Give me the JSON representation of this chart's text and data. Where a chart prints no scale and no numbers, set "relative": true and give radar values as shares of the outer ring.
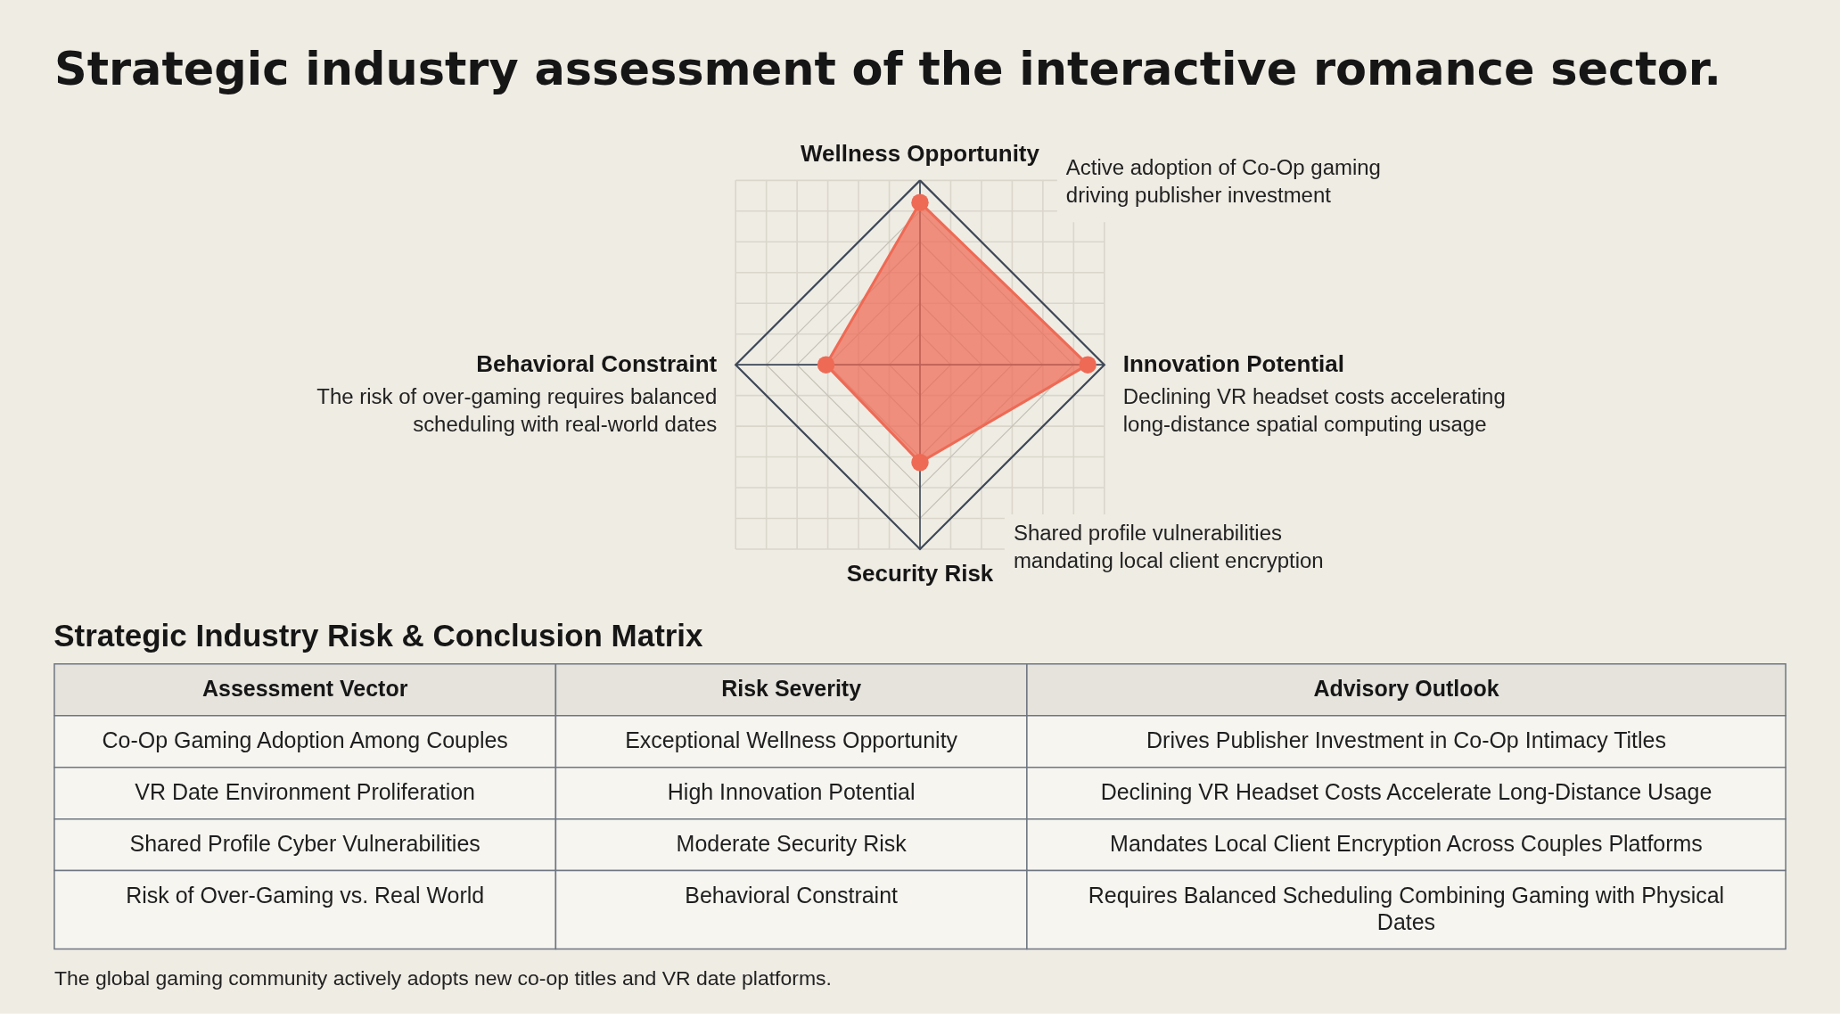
{
  "chart_data": [
    {
      "type": "radar",
      "title": "Strategic industry assessment of the interactive romance sector.",
      "categories": [
        "Wellness Opportunity",
        "Innovation Potential",
        "Security Risk",
        "Behavioral Constraint"
      ],
      "series": [
        {
          "color": "#ee6a55",
          "values": [
            0.88,
            0.91,
            0.53,
            0.51
          ]
        }
      ],
      "relative": true,
      "grid": true,
      "marker": "circle",
      "line_style": "solid",
      "annotations": [
        "Active adoption of Co-Op gaming driving publisher investment",
        "Declining VR headset costs accelerating long-distance spatial computing usage",
        "Shared profile vulnerabilities mandating local client encryption",
        "The risk of over-gaming requires balanced scheduling with real-world dates"
      ]
    },
    {
      "type": "other",
      "title": "Strategic Industry Risk & Conclusion Matrix",
      "categories": [
        "Assessment Vector",
        "Risk Severity",
        "Advisory Outlook"
      ],
      "cell_labels": [
        [
          "Co-Op Gaming Adoption Among Couples",
          "Exceptional Wellness Opportunity",
          "Drives Publisher Investment in Co-Op Intimacy Titles"
        ],
        [
          "VR Date Environment Proliferation",
          "High Innovation Potential",
          "Declining VR Headset Costs Accelerate Long-Distance Usage"
        ],
        [
          "Shared Profile Cyber Vulnerabilities",
          "Moderate Security Risk",
          "Mandates Local Client Encryption Across Couples Platforms"
        ],
        [
          "Risk of Over-Gaming vs. Real World",
          "Behavioral Constraint",
          "Requires Balanced Scheduling Combining Gaming with Physical Dates"
        ]
      ],
      "annotations": [
        "The global gaming community actively adopts new co-op titles and VR date platforms."
      ]
    }
  ]
}
